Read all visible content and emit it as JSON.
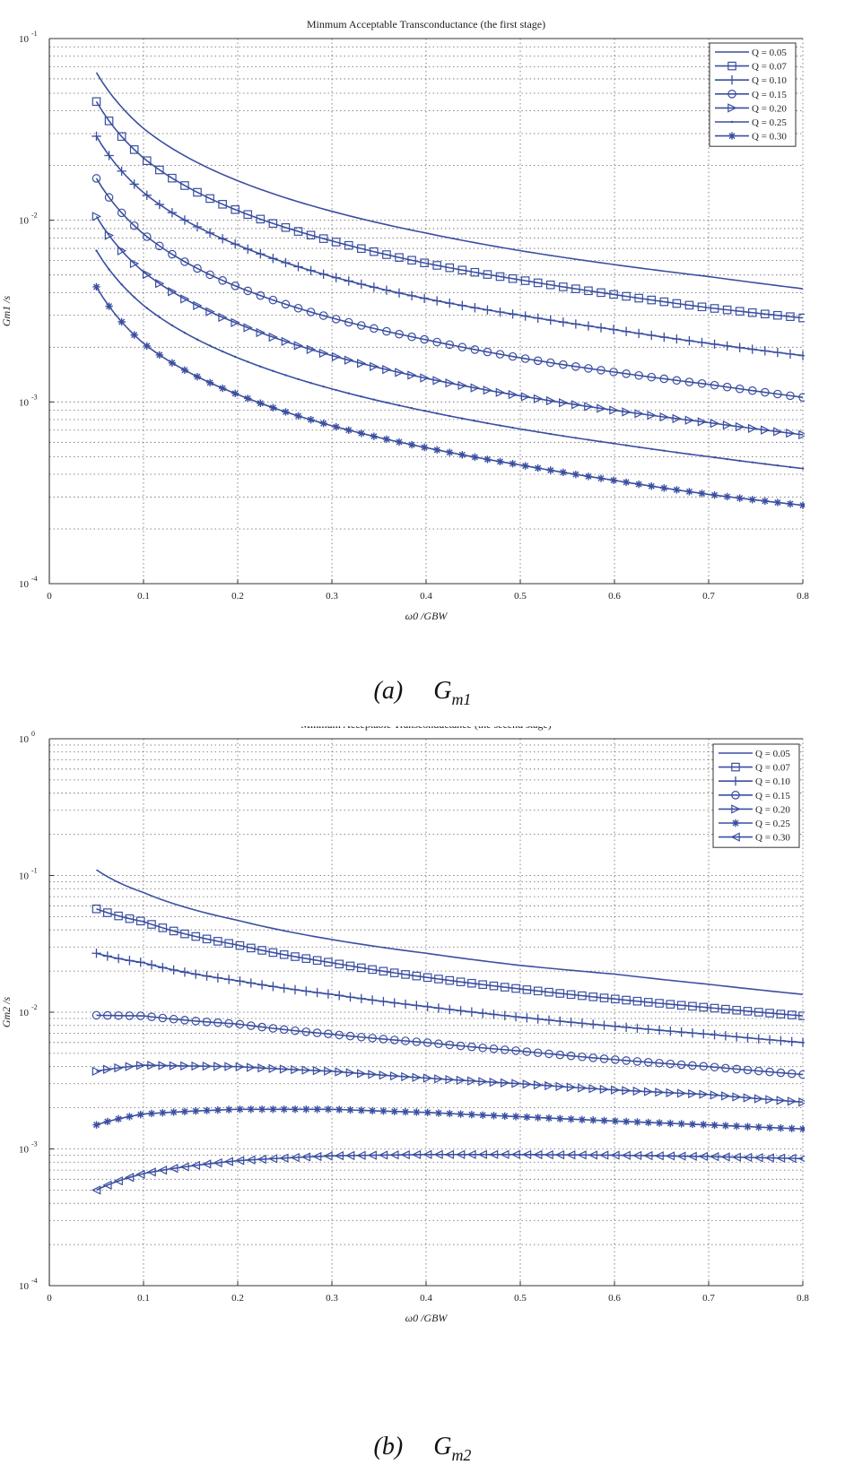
{
  "charts": [
    {
      "id": "a",
      "title": "Minmum Acceptable Transconductance (the first stage)",
      "xlabel": "ω0 /GBW",
      "ylabel": "Gm1 /s",
      "caption_paren": "(a)",
      "caption_symbol": "G",
      "caption_sub": "m1"
    },
    {
      "id": "b",
      "title": "Minmum Acceptable Transconductance (the secend stage)",
      "xlabel": "ω0 /GBW",
      "ylabel": "Gm2 /s",
      "caption_paren": "(b)",
      "caption_symbol": "G",
      "caption_sub": "m2"
    }
  ],
  "colors": {
    "series": "#3a4fa0",
    "grid": "#666666",
    "axis": "#333333"
  },
  "chart_data": [
    {
      "type": "line",
      "title": "Minmum Acceptable Transconductance (the first stage)",
      "xlabel": "ω0 /GBW",
      "ylabel": "Gm1 /s",
      "xlim": [
        0,
        0.8
      ],
      "ylim": [
        0.0001,
        0.1
      ],
      "yscale": "log",
      "x_ticks": [
        "0",
        "0.1",
        "0.2",
        "0.3",
        "0.4",
        "0.5",
        "0.6",
        "0.7",
        "0.8"
      ],
      "y_ticks": [
        "10^-4",
        "10^-3",
        "10^-2",
        "10^-1"
      ],
      "grid": true,
      "legend_position": "top-right",
      "x_range": [
        0.05,
        0.8
      ],
      "series": [
        {
          "name": "Q = 0.05",
          "marker": "none",
          "x": [
            0.05,
            0.1,
            0.2,
            0.3,
            0.4,
            0.5,
            0.6,
            0.7,
            0.8
          ],
          "values": [
            0.065,
            0.032,
            0.0165,
            0.0112,
            0.0085,
            0.0068,
            0.0057,
            0.0049,
            0.0042
          ]
        },
        {
          "name": "Q = 0.07",
          "marker": "square",
          "x": [
            0.05,
            0.1,
            0.2,
            0.3,
            0.4,
            0.5,
            0.6,
            0.7,
            0.8
          ],
          "values": [
            0.045,
            0.022,
            0.0113,
            0.0077,
            0.0058,
            0.0047,
            0.0039,
            0.0033,
            0.0029
          ]
        },
        {
          "name": "Q = 0.10",
          "marker": "plus",
          "x": [
            0.05,
            0.1,
            0.2,
            0.3,
            0.4,
            0.5,
            0.6,
            0.7,
            0.8
          ],
          "values": [
            0.029,
            0.0142,
            0.0073,
            0.0049,
            0.0037,
            0.003,
            0.0025,
            0.0021,
            0.0018
          ]
        },
        {
          "name": "Q = 0.15",
          "marker": "circle",
          "x": [
            0.05,
            0.1,
            0.2,
            0.3,
            0.4,
            0.5,
            0.6,
            0.7,
            0.8
          ],
          "values": [
            0.017,
            0.0084,
            0.0043,
            0.0029,
            0.0022,
            0.00175,
            0.00146,
            0.00125,
            0.00106
          ]
        },
        {
          "name": "Q = 0.20",
          "marker": "triangle-right",
          "x": [
            0.05,
            0.1,
            0.2,
            0.3,
            0.4,
            0.5,
            0.6,
            0.7,
            0.8
          ],
          "values": [
            0.0105,
            0.0052,
            0.0027,
            0.0018,
            0.00135,
            0.00108,
            0.0009,
            0.00077,
            0.00066
          ]
        },
        {
          "name": "Q = 0.25",
          "marker": "dot",
          "x": [
            0.05,
            0.1,
            0.2,
            0.3,
            0.4,
            0.5,
            0.6,
            0.7,
            0.8
          ],
          "values": [
            0.0068,
            0.0034,
            0.00175,
            0.00118,
            0.00089,
            0.00071,
            0.00059,
            0.0005,
            0.00043
          ]
        },
        {
          "name": "Q = 0.30",
          "marker": "star",
          "x": [
            0.05,
            0.1,
            0.2,
            0.3,
            0.4,
            0.5,
            0.6,
            0.7,
            0.8
          ],
          "values": [
            0.0043,
            0.0021,
            0.0011,
            0.00074,
            0.00056,
            0.00045,
            0.00037,
            0.00031,
            0.00027
          ]
        }
      ]
    },
    {
      "type": "line",
      "title": "Minmum Acceptable Transconductance (the secend stage)",
      "xlabel": "ω0 /GBW",
      "ylabel": "Gm2 /s",
      "xlim": [
        0,
        0.8
      ],
      "ylim": [
        0.0001,
        1
      ],
      "yscale": "log",
      "x_ticks": [
        "0",
        "0.1",
        "0.2",
        "0.3",
        "0.4",
        "0.5",
        "0.6",
        "0.7",
        "0.8"
      ],
      "y_ticks": [
        "10^-4",
        "10^-3",
        "10^-2",
        "10^-1",
        "10^0"
      ],
      "grid": true,
      "legend_position": "top-right",
      "series": [
        {
          "name": "Q = 0.05",
          "marker": "none",
          "x": [
            0.05,
            0.1,
            0.2,
            0.3,
            0.4,
            0.5,
            0.6,
            0.7,
            0.8
          ],
          "values": [
            0.11,
            0.075,
            0.047,
            0.034,
            0.027,
            0.022,
            0.019,
            0.016,
            0.0135
          ]
        },
        {
          "name": "Q = 0.07",
          "marker": "square",
          "x": [
            0.05,
            0.1,
            0.2,
            0.3,
            0.4,
            0.5,
            0.6,
            0.7,
            0.8
          ],
          "values": [
            0.057,
            0.046,
            0.031,
            0.023,
            0.018,
            0.0148,
            0.0125,
            0.0108,
            0.0094
          ]
        },
        {
          "name": "Q = 0.10",
          "marker": "plus",
          "x": [
            0.05,
            0.1,
            0.2,
            0.3,
            0.4,
            0.5,
            0.6,
            0.7,
            0.8
          ],
          "values": [
            0.027,
            0.023,
            0.017,
            0.0135,
            0.011,
            0.0092,
            0.0079,
            0.0069,
            0.006
          ]
        },
        {
          "name": "Q = 0.15",
          "marker": "circle",
          "x": [
            0.05,
            0.1,
            0.2,
            0.3,
            0.4,
            0.5,
            0.6,
            0.7,
            0.8
          ],
          "values": [
            0.0095,
            0.0094,
            0.0082,
            0.0069,
            0.006,
            0.0052,
            0.0045,
            0.004,
            0.0035
          ]
        },
        {
          "name": "Q = 0.20",
          "marker": "triangle-right",
          "x": [
            0.05,
            0.1,
            0.2,
            0.3,
            0.4,
            0.5,
            0.6,
            0.7,
            0.8
          ],
          "values": [
            0.0037,
            0.0041,
            0.004,
            0.0037,
            0.0033,
            0.003,
            0.0027,
            0.0025,
            0.0022
          ]
        },
        {
          "name": "Q = 0.25",
          "marker": "star",
          "x": [
            0.05,
            0.1,
            0.2,
            0.3,
            0.4,
            0.5,
            0.6,
            0.7,
            0.8
          ],
          "values": [
            0.0015,
            0.0018,
            0.00195,
            0.00195,
            0.00185,
            0.00172,
            0.0016,
            0.0015,
            0.0014
          ]
        },
        {
          "name": "Q = 0.30",
          "marker": "triangle-left",
          "x": [
            0.05,
            0.1,
            0.2,
            0.3,
            0.4,
            0.5,
            0.6,
            0.7,
            0.8
          ],
          "values": [
            0.0005,
            0.00066,
            0.00082,
            0.00089,
            0.00091,
            0.00091,
            0.0009,
            0.00088,
            0.00085
          ]
        }
      ]
    }
  ]
}
